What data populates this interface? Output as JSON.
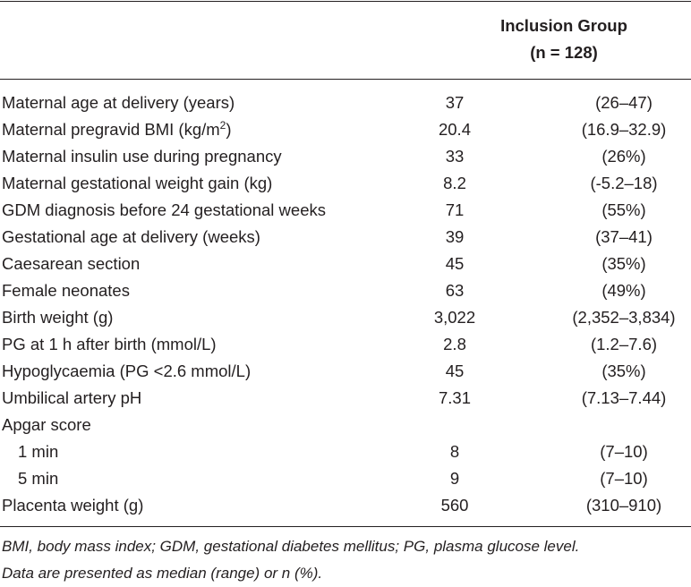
{
  "header": {
    "title_line1": "Inclusion Group",
    "title_line2": "(n = 128)"
  },
  "rows": [
    {
      "label": "Maternal age at delivery (years)",
      "value": "37",
      "range": "(26–47)"
    },
    {
      "label": "Maternal pregravid BMI (kg/m",
      "label_sup": "2",
      "label_after": ")",
      "value": "20.4",
      "range": "(16.9–32.9)"
    },
    {
      "label": "Maternal insulin use during pregnancy",
      "value": "33",
      "range": "(26%)"
    },
    {
      "label": "Maternal gestational weight gain (kg)",
      "value": "8.2",
      "range": "(-5.2–18)"
    },
    {
      "label": "GDM diagnosis before 24 gestational weeks",
      "value": "71",
      "range": "(55%)"
    },
    {
      "label": "Gestational age at delivery (weeks)",
      "value": "39",
      "range": "(37–41)"
    },
    {
      "label": "Caesarean section",
      "value": "45",
      "range": "(35%)"
    },
    {
      "label": "Female neonates",
      "value": "63",
      "range": "(49%)"
    },
    {
      "label": "Birth weight (g)",
      "value": "3,022",
      "range": "(2,352–3,834)"
    },
    {
      "label": "PG at 1 h after birth (mmol/L)",
      "value": "2.8",
      "range": "(1.2–7.6)"
    },
    {
      "label": "Hypoglycaemia (PG <2.6 mmol/L)",
      "value": "45",
      "range": "(35%)"
    },
    {
      "label": "Umbilical artery pH",
      "value": "7.31",
      "range": "(7.13–7.44)"
    },
    {
      "label": "Apgar score",
      "value": "",
      "range": ""
    },
    {
      "label": "1 min",
      "value": "8",
      "range": "(7–10)",
      "indent": true
    },
    {
      "label": "5 min",
      "value": "9",
      "range": "(7–10)",
      "indent": true
    },
    {
      "label": "Placenta weight (g)",
      "value": "560",
      "range": "(310–910)"
    }
  ],
  "footnote": {
    "line1": "BMI, body mass index; GDM, gestational diabetes mellitus; PG, plasma glucose level.",
    "line2": "Data are presented as median (range) or n (%)."
  }
}
